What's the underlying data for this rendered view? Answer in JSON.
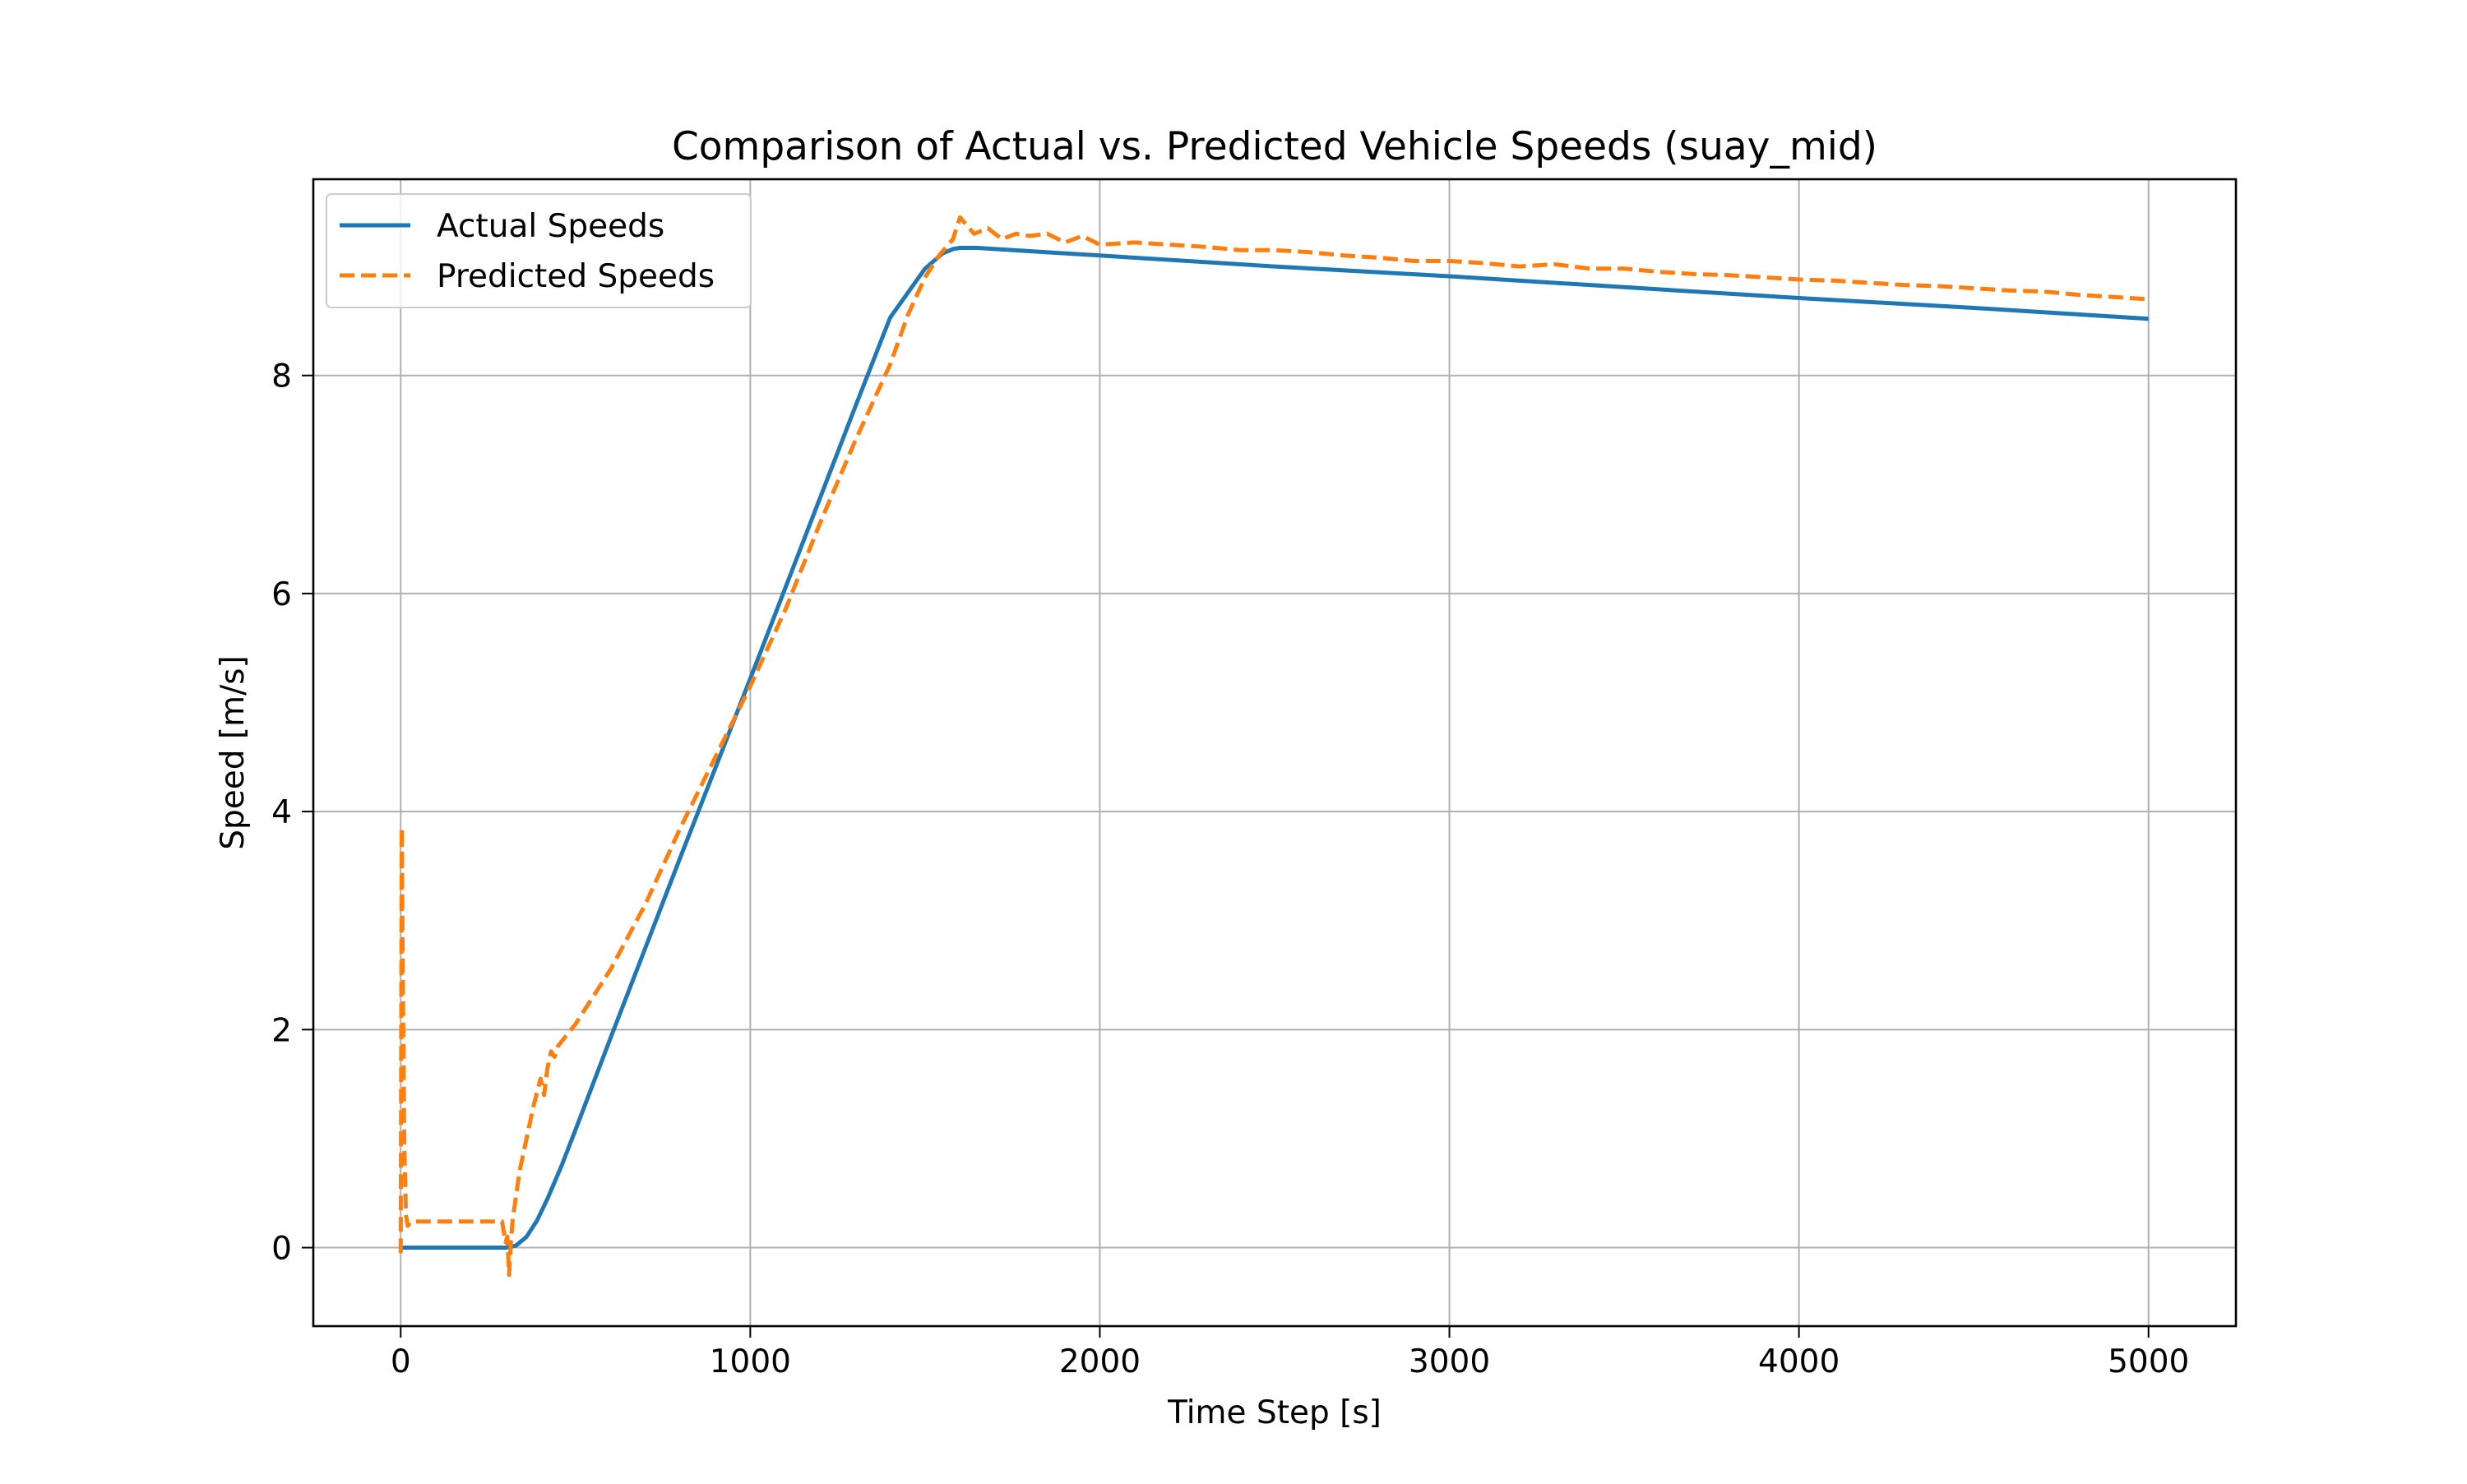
{
  "chart_data": {
    "type": "line",
    "title": "Comparison of Actual vs. Predicted Vehicle Speeds (suay_mid)",
    "xlabel": "Time Step [s]",
    "ylabel": "Speed [m/s]",
    "xlim": [
      -250,
      5250
    ],
    "ylim": [
      -0.72,
      9.8
    ],
    "xticks": [
      0,
      1000,
      2000,
      3000,
      4000,
      5000
    ],
    "xtick_labels": [
      "0",
      "1000",
      "2000",
      "3000",
      "4000",
      "5000"
    ],
    "yticks": [
      0,
      2,
      4,
      6,
      8
    ],
    "ytick_labels": [
      "0",
      "2",
      "4",
      "6",
      "8"
    ],
    "grid": true,
    "legend_position": "upper-left",
    "series": [
      {
        "name": "Actual Speeds",
        "color": "#1f77b4",
        "line_style": "solid",
        "x": [
          0,
          100,
          200,
          300,
          330,
          360,
          390,
          420,
          460,
          500,
          600,
          700,
          800,
          900,
          1000,
          1100,
          1200,
          1300,
          1400,
          1500,
          1550,
          1580,
          1600,
          1650,
          1700,
          2000,
          2500,
          3000,
          3500,
          4000,
          4500,
          5000
        ],
        "y": [
          0,
          0,
          0,
          0,
          0.02,
          0.1,
          0.25,
          0.45,
          0.75,
          1.08,
          1.92,
          2.75,
          3.58,
          4.4,
          5.22,
          6.05,
          6.88,
          7.71,
          8.53,
          8.98,
          9.12,
          9.16,
          9.17,
          9.17,
          9.16,
          9.1,
          9.0,
          8.91,
          8.81,
          8.71,
          8.62,
          8.52
        ]
      },
      {
        "name": "Predicted Speeds",
        "color": "#ff7f0e",
        "line_style": "dashed",
        "x": [
          0,
          3,
          6,
          10,
          15,
          20,
          30,
          60,
          100,
          200,
          250,
          290,
          300,
          305,
          310,
          315,
          320,
          340,
          380,
          400,
          410,
          420,
          430,
          440,
          450,
          500,
          600,
          700,
          800,
          900,
          1000,
          1100,
          1200,
          1300,
          1400,
          1450,
          1500,
          1540,
          1580,
          1600,
          1640,
          1680,
          1720,
          1760,
          1800,
          1850,
          1900,
          1950,
          2000,
          2100,
          2200,
          2300,
          2400,
          2500,
          2600,
          2700,
          2800,
          2900,
          3000,
          3100,
          3200,
          3300,
          3400,
          3500,
          3600,
          3700,
          3800,
          3900,
          4000,
          4100,
          4200,
          4300,
          4400,
          4500,
          4600,
          4700,
          4800,
          4900,
          5000
        ],
        "y": [
          -0.05,
          3.85,
          2.5,
          1.0,
          0.3,
          0.2,
          0.24,
          0.24,
          0.24,
          0.24,
          0.24,
          0.24,
          0.05,
          0.1,
          -0.25,
          0.05,
          0.25,
          0.7,
          1.3,
          1.55,
          1.4,
          1.65,
          1.8,
          1.75,
          1.85,
          2.05,
          2.55,
          3.15,
          3.85,
          4.5,
          5.15,
          5.85,
          6.65,
          7.4,
          8.1,
          8.55,
          8.9,
          9.1,
          9.25,
          9.45,
          9.3,
          9.35,
          9.25,
          9.3,
          9.28,
          9.3,
          9.22,
          9.28,
          9.2,
          9.22,
          9.2,
          9.18,
          9.15,
          9.15,
          9.13,
          9.1,
          9.08,
          9.05,
          9.05,
          9.03,
          9.0,
          9.02,
          8.98,
          8.98,
          8.95,
          8.93,
          8.92,
          8.9,
          8.88,
          8.87,
          8.85,
          8.83,
          8.82,
          8.8,
          8.78,
          8.77,
          8.74,
          8.72,
          8.7
        ]
      }
    ]
  }
}
